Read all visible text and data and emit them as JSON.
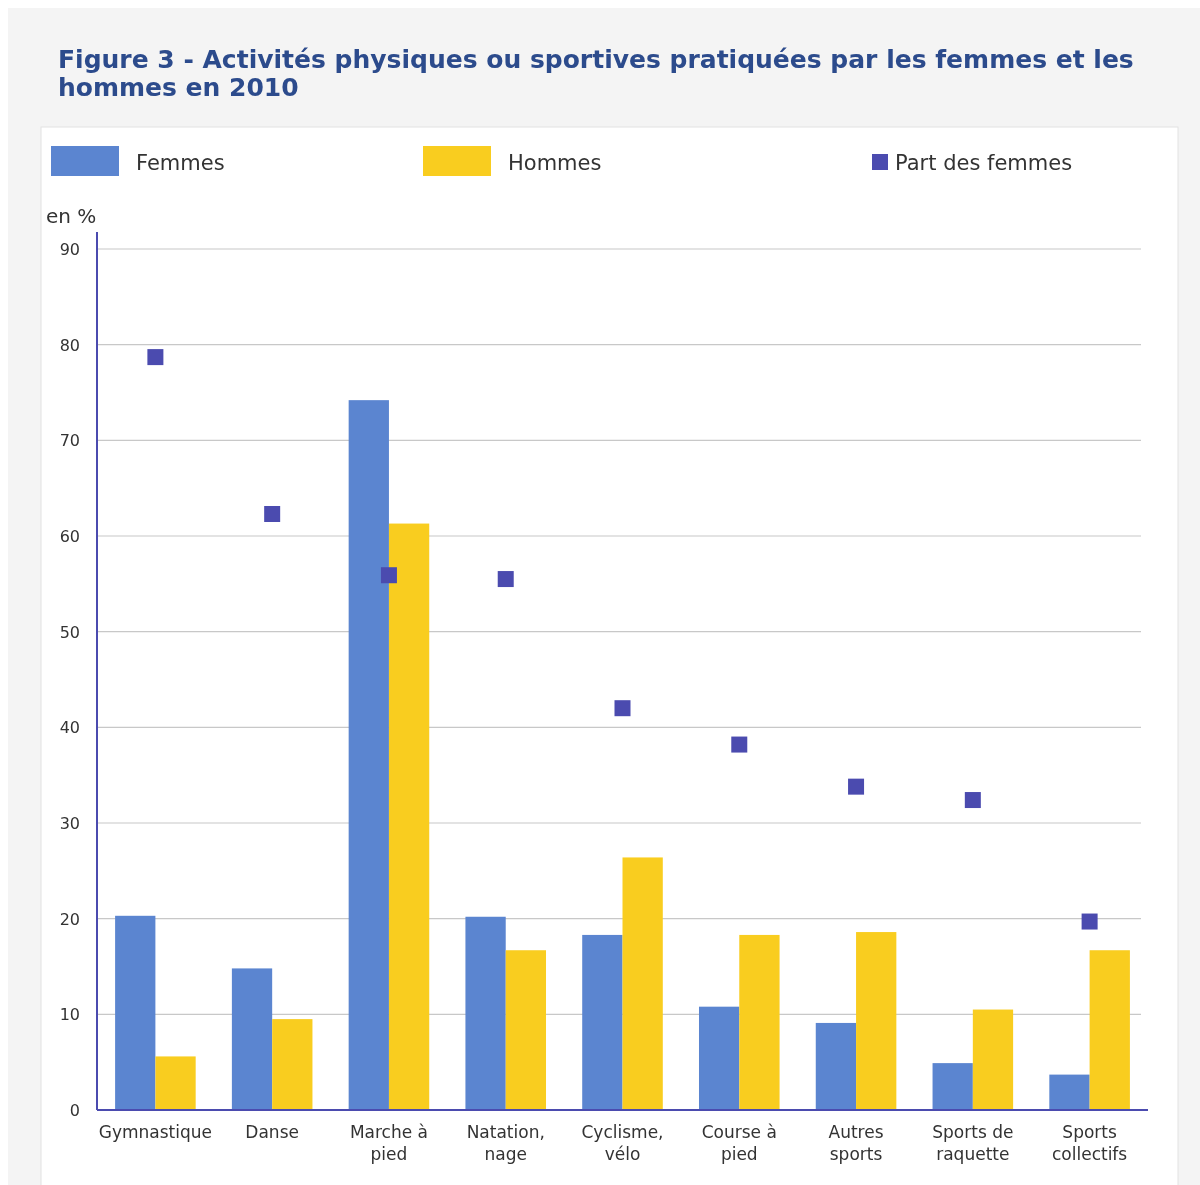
{
  "chart_data": {
    "type": "bar",
    "title": "Figure 3 - Activités physiques ou sportives pratiquées par les femmes et les hommes en 2010",
    "ylabel": "en %",
    "categories": [
      "Gymnastique",
      "Danse",
      "Marche à pied",
      "Natation, nage",
      "Cyclisme, vélo",
      "Course à pied",
      "Autres sports",
      "Sports de raquette",
      "Sports collectifs"
    ],
    "series": [
      {
        "name": "Femmes",
        "color": "#5b85d0",
        "values": [
          20.3,
          14.8,
          74.2,
          20.2,
          18.3,
          10.8,
          9.1,
          4.9,
          3.7
        ]
      },
      {
        "name": "Hommes",
        "color": "#f9cd1f",
        "values": [
          5.6,
          9.5,
          61.3,
          16.7,
          26.4,
          18.3,
          18.6,
          10.5,
          16.7
        ]
      },
      {
        "name": "Part des femmes",
        "type": "scatter",
        "color": "#4b4baf",
        "marker": "square",
        "x": [
          "Gymnastique",
          "Danse",
          "Marche à pied",
          "Natation, nage",
          "Cyclisme, vélo",
          "Course à pied",
          "Autres sports",
          "Sports de raquette",
          "Sports collectifs"
        ],
        "values": [
          78.7,
          62.3,
          55.9,
          55.5,
          42.0,
          38.2,
          33.8,
          32.4,
          19.7
        ]
      }
    ],
    "ylim": [
      0,
      90
    ],
    "yticks": [
      0,
      10,
      20,
      30,
      40,
      50,
      60,
      70,
      80,
      90
    ],
    "grid": "y",
    "legend": "top"
  }
}
